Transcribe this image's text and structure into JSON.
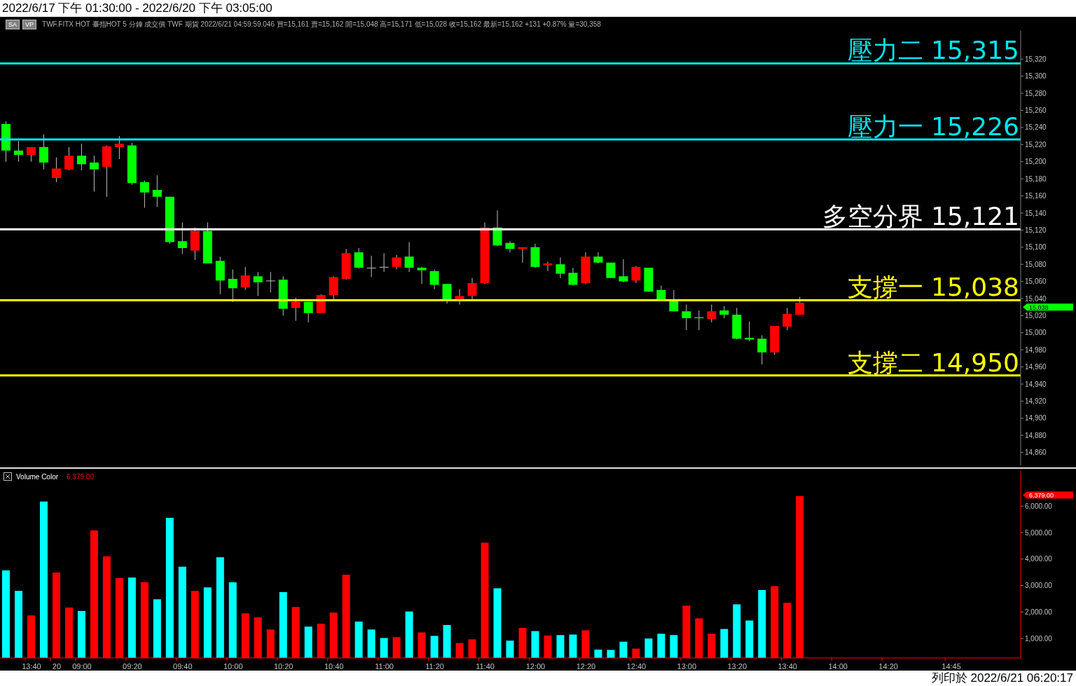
{
  "chart_data": [
    {
      "type": "candlestick",
      "title": "2022/6/17 下午 01:30:00 - 2022/6/20 下午 03:05:00",
      "subtitle": "TWF.FITX HOT 臺指HOT 5 分鐘 成交價 TWF 期貨 2022/6/21 04:59:59.046 買=15,161 賣=15,162 開=15,048 高=15,171 低=15,028 收=15,162 最新=15,162 +131 +0.87% 量=30,358",
      "annotations": [
        "SA",
        "VP",
        "15,038"
      ],
      "ohlc": [
        [
          15244,
          15247,
          15200,
          15213
        ],
        [
          15213,
          15224,
          15200,
          15208
        ],
        [
          15208,
          15217,
          15200,
          15217
        ],
        [
          15217,
          15232,
          15191,
          15199
        ],
        [
          15181,
          15205,
          15176,
          15192
        ],
        [
          15191,
          15217,
          15190,
          15207
        ],
        [
          15207,
          15221,
          15190,
          15197
        ],
        [
          15199,
          15207,
          15165,
          15191
        ],
        [
          15194,
          15219,
          15159,
          15218
        ],
        [
          15217,
          15230,
          15203,
          15221
        ],
        [
          15219,
          15222,
          15173,
          15175
        ],
        [
          15176,
          15178,
          15146,
          15164
        ],
        [
          15167,
          15184,
          15147,
          15159
        ],
        [
          15159,
          15159,
          15104,
          15106
        ],
        [
          15107,
          15129,
          15092,
          15099
        ],
        [
          15096,
          15123,
          15085,
          15119
        ],
        [
          15119,
          15129,
          15081,
          15081
        ],
        [
          15084,
          15089,
          15045,
          15061
        ],
        [
          15063,
          15074,
          15036,
          15052
        ],
        [
          15053,
          15077,
          15050,
          15067
        ],
        [
          15066,
          15071,
          15043,
          15059
        ],
        [
          15061,
          15071,
          15047,
          15061
        ],
        [
          15062,
          15066,
          15020,
          15028
        ],
        [
          15029,
          15041,
          15014,
          15036
        ],
        [
          15036,
          15036,
          15012,
          15023
        ],
        [
          15023,
          15045,
          15023,
          15044
        ],
        [
          15044,
          15066,
          15039,
          15065
        ],
        [
          15063,
          15098,
          15062,
          15093
        ],
        [
          15094,
          15099,
          15075,
          15076
        ],
        [
          15076,
          15090,
          15065,
          15076
        ],
        [
          15077,
          15093,
          15071,
          15077
        ],
        [
          15077,
          15091,
          15074,
          15088
        ],
        [
          15089,
          15106,
          15071,
          15076
        ],
        [
          15076,
          15077,
          15057,
          15073
        ],
        [
          15072,
          15074,
          15051,
          15056
        ],
        [
          15057,
          15057,
          15034,
          15038
        ],
        [
          15038,
          15051,
          15033,
          15043
        ],
        [
          15043,
          15064,
          15039,
          15058
        ],
        [
          15058,
          15129,
          15057,
          15123
        ],
        [
          15123,
          15143,
          15101,
          15102
        ],
        [
          15105,
          15107,
          15094,
          15098
        ],
        [
          15098,
          15100,
          15082,
          15100
        ],
        [
          15100,
          15104,
          15076,
          15077
        ],
        [
          15079,
          15083,
          15072,
          15081
        ],
        [
          15080,
          15088,
          15064,
          15069
        ],
        [
          15070,
          15076,
          15055,
          15056
        ],
        [
          15058,
          15094,
          15057,
          15089
        ],
        [
          15089,
          15094,
          15081,
          15082
        ],
        [
          15082,
          15082,
          15064,
          15064
        ],
        [
          15066,
          15086,
          15059,
          15060
        ],
        [
          15061,
          15078,
          15058,
          15077
        ],
        [
          15076,
          15076,
          15048,
          15048
        ],
        [
          15050,
          15055,
          15038,
          15038
        ],
        [
          15039,
          15050,
          15025,
          15025
        ],
        [
          15025,
          15033,
          15003,
          15017
        ],
        [
          15018,
          15026,
          15003,
          15017
        ],
        [
          15016,
          15033,
          15012,
          15025
        ],
        [
          15026,
          15031,
          15017,
          15021
        ],
        [
          15021,
          15029,
          14992,
          14993
        ],
        [
          14994,
          15013,
          14990,
          14992
        ],
        [
          14993,
          14997,
          14963,
          14977
        ],
        [
          14977,
          15008,
          14974,
          15008
        ],
        [
          15007,
          15029,
          15003,
          15022
        ],
        [
          15021,
          15042,
          15021,
          15035
        ],
        null,
        null,
        null,
        null,
        null,
        null,
        null,
        null,
        null,
        null,
        null,
        null,
        null,
        null,
        null,
        null,
        null
      ],
      "colors": [
        "#00ff00",
        "#00ff00",
        "#ff0000",
        "#00ff00",
        "#ff0000",
        "#ff0000",
        "#00ff00",
        "#00ff00",
        "#ff0000",
        "#ff0000",
        "#00ff00",
        "#00ff00",
        "#00ff00",
        "#00ff00",
        "#00ff00",
        "#ff0000",
        "#00ff00",
        "#00ff00",
        "#00ff00",
        "#ff0000",
        "#00ff00",
        "#c0c0c0",
        "#00ff00",
        "#ff0000",
        "#00ff00",
        "#ff0000",
        "#ff0000",
        "#ff0000",
        "#00ff00",
        "#c0c0c0",
        "#c0c0c0",
        "#ff0000",
        "#00ff00",
        "#00ff00",
        "#00ff00",
        "#00ff00",
        "#ff0000",
        "#ff0000",
        "#ff0000",
        "#00ff00",
        "#00ff00",
        "#ff0000",
        "#00ff00",
        "#ff0000",
        "#00ff00",
        "#00ff00",
        "#ff0000",
        "#00ff00",
        "#00ff00",
        "#00ff00",
        "#ff0000",
        "#00ff00",
        "#00ff00",
        "#00ff00",
        "#00ff00",
        "#00ff00",
        "#ff0000",
        "#00ff00",
        "#00ff00",
        "#00ff00",
        "#00ff00",
        "#ff0000",
        "#ff0000",
        "#ff0000",
        null,
        null,
        null,
        null,
        null,
        null,
        null,
        null,
        null,
        null,
        null,
        null,
        null,
        null,
        null,
        null,
        null
      ],
      "ylim": [
        14845,
        15353
      ],
      "yticks": [
        {
          "value": 14860,
          "label": "14,860"
        },
        {
          "value": 14880,
          "label": "14,880"
        },
        {
          "value": 14900,
          "label": "14,900"
        },
        {
          "value": 14920,
          "label": "14,920"
        },
        {
          "value": 14940,
          "label": "14,940"
        },
        {
          "value": 14960,
          "label": "14,960"
        },
        {
          "value": 14980,
          "label": "14,980"
        },
        {
          "value": 15000,
          "label": "15,000"
        },
        {
          "value": 15020,
          "label": "15,020"
        },
        {
          "value": 15040,
          "label": "15,040"
        },
        {
          "value": 15060,
          "label": "15,060"
        },
        {
          "value": 15080,
          "label": "15,080"
        },
        {
          "value": 15100,
          "label": "15,100"
        },
        {
          "value": 15120,
          "label": "15,120"
        },
        {
          "value": 15140,
          "label": "15,140"
        },
        {
          "value": 15160,
          "label": "15,160"
        },
        {
          "value": 15180,
          "label": "15,180"
        },
        {
          "value": 15200,
          "label": "15,200"
        },
        {
          "value": 15220,
          "label": "15,220"
        },
        {
          "value": 15240,
          "label": "15,240"
        },
        {
          "value": 15260,
          "label": "15,260"
        },
        {
          "value": 15280,
          "label": "15,280"
        },
        {
          "value": 15300,
          "label": "15,300"
        },
        {
          "value": 15320,
          "label": "15,320"
        }
      ],
      "ref_lines": [
        {
          "axis": "y",
          "value": 15315,
          "label": "壓力二 15,315",
          "color": "#00e5ee"
        },
        {
          "axis": "y",
          "value": 15226,
          "label": "壓力一 15,226",
          "color": "#00e5ee"
        },
        {
          "axis": "y",
          "value": 15121,
          "label": "多空分界 15,121",
          "color": "#ffffff"
        },
        {
          "axis": "y",
          "value": 15038,
          "label": "支撐一 15,038",
          "color": "#ffff00"
        },
        {
          "axis": "y",
          "value": 14950,
          "label": "支撐二 14,950",
          "color": "#ffff00"
        }
      ]
    },
    {
      "type": "bar",
      "title": "Volume Color",
      "annotations": [
        "6,379.00",
        "列印於 2022/6/21 06:20:17"
      ],
      "categories": [
        null,
        null,
        "13:40",
        null,
        "20",
        null,
        "09:00",
        null,
        null,
        null,
        "09:20",
        null,
        null,
        null,
        "09:40",
        null,
        null,
        null,
        "10:00",
        null,
        null,
        null,
        "10:20",
        null,
        null,
        null,
        "10:40",
        null,
        null,
        null,
        "11:00",
        null,
        null,
        null,
        "11:20",
        null,
        null,
        null,
        "11:40",
        null,
        null,
        null,
        "12:00",
        null,
        null,
        null,
        "12:20",
        null,
        null,
        null,
        "12:40",
        null,
        null,
        null,
        "13:00",
        null,
        null,
        null,
        "13:20",
        null,
        null,
        null,
        "13:40",
        null,
        null,
        null,
        "14:00",
        null,
        null,
        null,
        "14:20",
        null,
        null,
        null,
        null,
        "14:45",
        null,
        null,
        null,
        null,
        null
      ],
      "values": [
        3570,
        2800,
        1870,
        6170,
        3490,
        2170,
        2040,
        5080,
        4100,
        3280,
        3300,
        3120,
        2480,
        5560,
        3710,
        2800,
        2930,
        4070,
        3120,
        1950,
        1800,
        1340,
        2750,
        2190,
        1450,
        1560,
        1980,
        3410,
        1640,
        1340,
        1020,
        1050,
        2020,
        1230,
        1100,
        1510,
        830,
        970,
        4620,
        2900,
        920,
        1400,
        1280,
        1110,
        1130,
        1150,
        1310,
        580,
        570,
        880,
        620,
        1000,
        1180,
        1130,
        2240,
        1760,
        1180,
        1360,
        2290,
        1680,
        2830,
        2980,
        2350,
        6379,
        null,
        null,
        null,
        null,
        null,
        null,
        null,
        null,
        null,
        null,
        null,
        null,
        null,
        null,
        null,
        null,
        null
      ],
      "colors": [
        "#00ffff",
        "#00ffff",
        "#ff0000",
        "#00ffff",
        "#ff0000",
        "#ff0000",
        "#00ffff",
        "#ff0000",
        "#ff0000",
        "#ff0000",
        "#00ffff",
        "#ff0000",
        "#00ffff",
        "#00ffff",
        "#00ffff",
        "#ff0000",
        "#00ffff",
        "#00ffff",
        "#00ffff",
        "#ff0000",
        "#ff0000",
        "#ff0000",
        "#00ffff",
        "#ff0000",
        "#00ffff",
        "#ff0000",
        "#ff0000",
        "#ff0000",
        "#00ffff",
        "#00ffff",
        "#00ffff",
        "#ff0000",
        "#00ffff",
        "#ff0000",
        "#00ffff",
        "#00ffff",
        "#ff0000",
        "#ff0000",
        "#ff0000",
        "#00ffff",
        "#00ffff",
        "#ff0000",
        "#00ffff",
        "#ff0000",
        "#00ffff",
        "#00ffff",
        "#ff0000",
        "#00ffff",
        "#00ffff",
        "#00ffff",
        "#ff0000",
        "#00ffff",
        "#00ffff",
        "#00ffff",
        "#ff0000",
        "#ff0000",
        "#ff0000",
        "#00ffff",
        "#00ffff",
        "#00ffff",
        "#00ffff",
        "#ff0000",
        "#ff0000",
        "#ff0000",
        null,
        null,
        null,
        null,
        null,
        null,
        null,
        null,
        null,
        null,
        null,
        null,
        null,
        null,
        null,
        null,
        null
      ],
      "ylim": [
        265,
        7330
      ],
      "yticks": [
        {
          "value": 1000,
          "label": "1,000.00"
        },
        {
          "value": 2000,
          "label": "2,000.00"
        },
        {
          "value": 3000,
          "label": "3,000.00"
        },
        {
          "value": 4000,
          "label": "4,000.00"
        },
        {
          "value": 5000,
          "label": "5,000.00"
        },
        {
          "value": 6000,
          "label": "6,000.00"
        }
      ]
    }
  ]
}
